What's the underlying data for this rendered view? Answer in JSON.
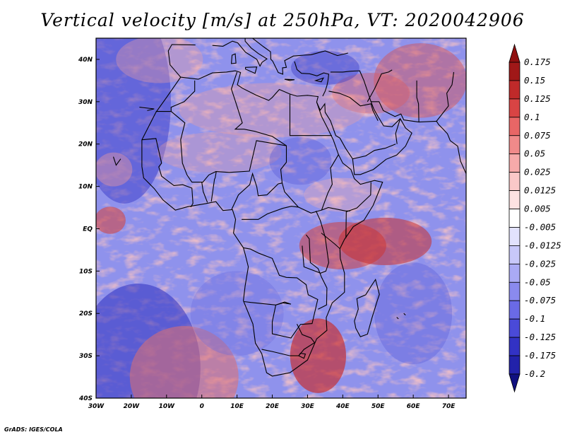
{
  "title": "Vertical velocity [m/s] at 250hPa, VT: 2020042906",
  "footer": "GrADS: IGES/COLA",
  "map": {
    "lon_range": [
      -30,
      75
    ],
    "lat_range": [
      -40,
      45
    ],
    "lon_ticks": [
      {
        "value": -30,
        "label": "30W"
      },
      {
        "value": -20,
        "label": "20W"
      },
      {
        "value": -10,
        "label": "10W"
      },
      {
        "value": 0,
        "label": "0"
      },
      {
        "value": 10,
        "label": "10E"
      },
      {
        "value": 20,
        "label": "20E"
      },
      {
        "value": 30,
        "label": "30E"
      },
      {
        "value": 40,
        "label": "40E"
      },
      {
        "value": 50,
        "label": "50E"
      },
      {
        "value": 60,
        "label": "60E"
      },
      {
        "value": 70,
        "label": "70E"
      }
    ],
    "lat_ticks": [
      {
        "value": 40,
        "label": "40N"
      },
      {
        "value": 30,
        "label": "30N"
      },
      {
        "value": 20,
        "label": "20N"
      },
      {
        "value": 10,
        "label": "10N"
      },
      {
        "value": 0,
        "label": "EQ"
      },
      {
        "value": -10,
        "label": "10S"
      },
      {
        "value": -20,
        "label": "20S"
      },
      {
        "value": -30,
        "label": "30S"
      },
      {
        "value": -40,
        "label": "40S"
      }
    ],
    "coastline_color": "#000000"
  },
  "colorbar": {
    "levels": [
      {
        "label": "0.175",
        "color": "#a01818"
      },
      {
        "label": "0.15",
        "color": "#c02a2a"
      },
      {
        "label": "0.125",
        "color": "#d84444"
      },
      {
        "label": "0.1",
        "color": "#e86666"
      },
      {
        "label": "0.075",
        "color": "#f08a8a"
      },
      {
        "label": "0.05",
        "color": "#f6aaaa"
      },
      {
        "label": "0.025",
        "color": "#fac8c8"
      },
      {
        "label": "0.0125",
        "color": "#fde2e2"
      },
      {
        "label": "0.005",
        "color": "#ffffff"
      },
      {
        "label": "-0.005",
        "color": "#e2e2fd"
      },
      {
        "label": "-0.0125",
        "color": "#c8c8fa"
      },
      {
        "label": "-0.025",
        "color": "#aaaaf5"
      },
      {
        "label": "-0.05",
        "color": "#8a8aee"
      },
      {
        "label": "-0.075",
        "color": "#6a6ae6"
      },
      {
        "label": "-0.1",
        "color": "#4a4ad8"
      },
      {
        "label": "-0.125",
        "color": "#3232c4"
      },
      {
        "label": "-0.175",
        "color": "#2222aa"
      },
      {
        "label": "-0.2",
        "color": "#1a1a90"
      }
    ],
    "top_triangle_color": "#901010",
    "bottom_triangle_color": "#101080"
  }
}
